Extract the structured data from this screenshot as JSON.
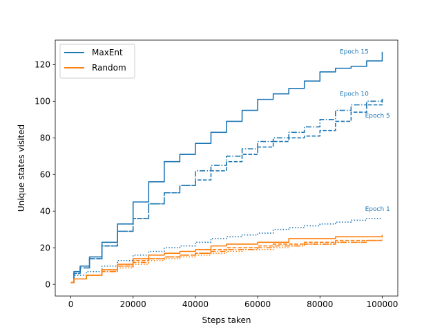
{
  "chart_data": {
    "type": "line",
    "title": "",
    "xlabel": "Steps taken",
    "ylabel": "Unique states visited",
    "xlim": [
      -5000,
      105000
    ],
    "ylim": [
      -6.35,
      133.35
    ],
    "xticks": [
      0,
      20000,
      40000,
      60000,
      80000,
      100000
    ],
    "xtick_labels": [
      "0",
      "20000",
      "40000",
      "60000",
      "80000",
      "100000"
    ],
    "yticks": [
      0,
      20,
      40,
      60,
      80,
      100,
      120
    ],
    "ytick_labels": [
      "0",
      "20",
      "40",
      "60",
      "80",
      "100",
      "120"
    ],
    "grid": false,
    "legend": {
      "position": "top-left",
      "entries": [
        {
          "label": "MaxEnt",
          "color": "#1f77b4"
        },
        {
          "label": "Random",
          "color": "#ff7f0e"
        }
      ]
    },
    "colors": {
      "maxent": "#1f77b4",
      "random": "#ff7f0e"
    },
    "series": [
      {
        "name": "MaxEnt Epoch 15",
        "group": "MaxEnt",
        "style": "solid",
        "x": [
          0,
          1000,
          3000,
          6000,
          10000,
          15000,
          20000,
          25000,
          30000,
          35000,
          40000,
          45000,
          50000,
          55000,
          60000,
          65000,
          70000,
          75000,
          80000,
          85000,
          90000,
          95000,
          100000
        ],
        "values": [
          1,
          7,
          10,
          15,
          23,
          33,
          45,
          56,
          67,
          71,
          77,
          83,
          89,
          95,
          101,
          104,
          107,
          111,
          116,
          118,
          119,
          122,
          127
        ]
      },
      {
        "name": "MaxEnt Epoch 10",
        "group": "MaxEnt",
        "style": "dashdot",
        "x": [
          0,
          1000,
          3000,
          6000,
          10000,
          15000,
          20000,
          25000,
          30000,
          35000,
          40000,
          45000,
          50000,
          55000,
          60000,
          65000,
          70000,
          75000,
          80000,
          85000,
          90000,
          95000,
          100000
        ],
        "values": [
          1,
          6,
          9,
          14,
          21,
          29,
          36,
          44,
          50,
          54,
          62,
          65,
          70,
          74,
          78,
          80,
          83,
          86,
          90,
          95,
          98,
          100,
          101
        ]
      },
      {
        "name": "MaxEnt Epoch 5",
        "group": "MaxEnt",
        "style": "dashed",
        "x": [
          0,
          1000,
          3000,
          6000,
          10000,
          15000,
          20000,
          25000,
          30000,
          35000,
          40000,
          45000,
          50000,
          55000,
          60000,
          65000,
          70000,
          75000,
          80000,
          85000,
          90000,
          95000,
          100000
        ],
        "values": [
          1,
          6,
          9,
          14,
          21,
          29,
          36,
          44,
          50,
          54,
          57,
          62,
          67,
          71,
          75,
          78,
          80,
          81,
          84,
          89,
          94,
          98,
          102
        ]
      },
      {
        "name": "MaxEnt Epoch 1",
        "group": "MaxEnt",
        "style": "dotted",
        "x": [
          0,
          1000,
          5000,
          10000,
          15000,
          20000,
          25000,
          30000,
          35000,
          40000,
          45000,
          50000,
          55000,
          60000,
          65000,
          70000,
          75000,
          80000,
          85000,
          90000,
          95000,
          100000
        ],
        "values": [
          1,
          5,
          7,
          10,
          13,
          16,
          18,
          20,
          21,
          23,
          25,
          26,
          27,
          28,
          30,
          31,
          32,
          33,
          34,
          35,
          36,
          36
        ]
      },
      {
        "name": "Random Epoch 15",
        "group": "Random",
        "style": "solid",
        "x": [
          0,
          1000,
          5000,
          10000,
          15000,
          20000,
          25000,
          30000,
          35000,
          40000,
          45000,
          50000,
          55000,
          60000,
          65000,
          70000,
          75000,
          80000,
          85000,
          90000,
          95000,
          100000
        ],
        "values": [
          1,
          3,
          5,
          8,
          11,
          14,
          16,
          17,
          18,
          19,
          21,
          22,
          22,
          23,
          23,
          25,
          25,
          25,
          26,
          26,
          26,
          27
        ]
      },
      {
        "name": "Random Epoch 10",
        "group": "Random",
        "style": "dashed",
        "x": [
          0,
          1000,
          5000,
          10000,
          15000,
          20000,
          25000,
          30000,
          35000,
          40000,
          45000,
          50000,
          55000,
          60000,
          65000,
          70000,
          75000,
          80000,
          85000,
          90000,
          95000,
          100000
        ],
        "values": [
          1,
          3,
          5,
          8,
          10,
          13,
          14,
          15,
          16,
          17,
          19,
          20,
          20,
          21,
          22,
          22,
          23,
          23,
          24,
          24,
          24,
          25
        ]
      },
      {
        "name": "Random Epoch 5",
        "group": "Random",
        "style": "dashdot",
        "x": [
          0,
          1000,
          5000,
          10000,
          15000,
          20000,
          25000,
          30000,
          35000,
          40000,
          45000,
          50000,
          55000,
          60000,
          65000,
          70000,
          75000,
          80000,
          85000,
          90000,
          95000,
          100000
        ],
        "values": [
          1,
          3,
          5,
          7,
          10,
          12,
          14,
          15,
          16,
          17,
          18,
          19,
          19,
          20,
          21,
          21,
          22,
          22,
          23,
          23,
          24,
          24
        ]
      },
      {
        "name": "Random Epoch 1",
        "group": "Random",
        "style": "dotted",
        "x": [
          0,
          1000,
          5000,
          10000,
          15000,
          20000,
          25000,
          30000,
          35000,
          40000,
          45000,
          50000,
          55000,
          60000,
          65000,
          70000,
          75000,
          80000,
          85000,
          90000,
          95000,
          100000
        ],
        "values": [
          1,
          3,
          5,
          7,
          9,
          11,
          13,
          14,
          15,
          16,
          17,
          18,
          19,
          19,
          20,
          21,
          22,
          22,
          23,
          23,
          24,
          24
        ]
      }
    ],
    "annotations": [
      {
        "text": "Epoch 15",
        "x": 91000,
        "y": 126,
        "color": "#1f77b4"
      },
      {
        "text": "Epoch 10",
        "x": 91000,
        "y": 103,
        "color": "#1f77b4"
      },
      {
        "text": "Epoch 5",
        "x": 98500,
        "y": 91,
        "color": "#1f77b4"
      },
      {
        "text": "Epoch 1",
        "x": 98500,
        "y": 40,
        "color": "#1f77b4"
      }
    ]
  }
}
